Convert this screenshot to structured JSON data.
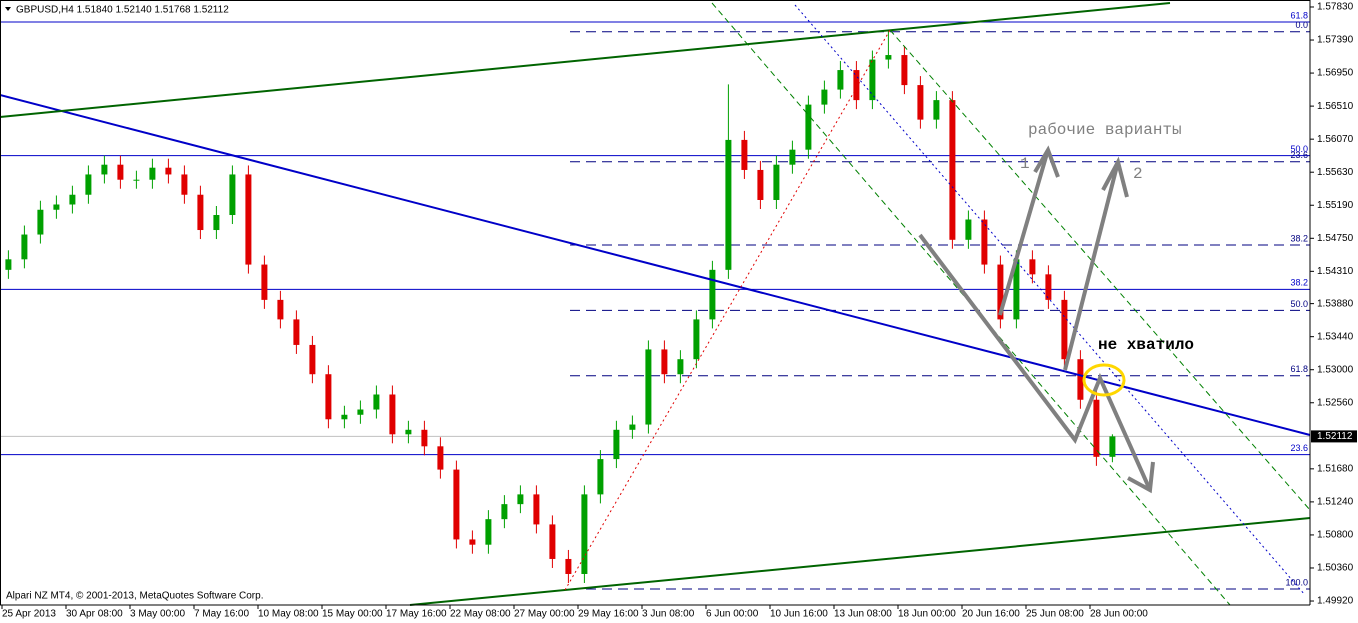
{
  "chart_data": {
    "type": "candlestick",
    "title": "GBPUSD,H4  1.51840 1.52140 1.51768 1.52112",
    "footer": "Alpari NZ MT4, © 2001-2013, MetaQuotes Software Corp.",
    "x_labels": [
      "25 Apr 2013",
      "30 Apr 08:00",
      "3 May 00:00",
      "7 May 16:00",
      "10 May 08:00",
      "15 May 00:00",
      "17 May 16:00",
      "22 May 08:00",
      "27 May 00:00",
      "29 May 16:00",
      "3 Jun 08:00",
      "6 Jun 00:00",
      "10 Jun 16:00",
      "13 Jun 08:00",
      "18 Jun 00:00",
      "20 Jun 16:00",
      "25 Jun 08:00",
      "28 Jun 00:00"
    ],
    "open": [
      1.5433,
      1.5447,
      1.548,
      1.5513,
      1.552,
      1.5533,
      1.556,
      1.5573,
      1.5553,
      1.5553,
      1.5569,
      1.556,
      1.5533,
      1.5486,
      1.5506,
      1.556,
      1.544,
      1.5393,
      1.5367,
      1.5333,
      1.5294,
      1.5234,
      1.524,
      1.5247,
      1.5267,
      1.5214,
      1.522,
      1.5198,
      1.5167,
      1.5074,
      1.5067,
      1.5101,
      1.5121,
      1.5134,
      1.5094,
      1.5048,
      1.5028,
      1.5134,
      1.5181,
      1.522,
      1.5227,
      1.5327,
      1.5294,
      1.5314,
      1.5367,
      1.5433,
      1.5606,
      1.5566,
      1.5526,
      1.5573,
      1.5593,
      1.5653,
      1.5673,
      1.5699,
      1.5659,
      1.5713,
      1.5719,
      1.5679,
      1.5633,
      1.5659,
      1.5473,
      1.55,
      1.544,
      1.5367,
      1.5447,
      1.5427,
      1.5393,
      1.5314,
      1.526,
      1.5184
    ],
    "high": [
      1.5459,
      1.5492,
      1.5525,
      1.5532,
      1.5545,
      1.5572,
      1.5585,
      1.5585,
      1.5565,
      1.5581,
      1.5581,
      1.5572,
      1.5545,
      1.5518,
      1.5572,
      1.5572,
      1.5452,
      1.5405,
      1.5379,
      1.5345,
      1.5306,
      1.5252,
      1.5259,
      1.5279,
      1.5279,
      1.5232,
      1.5232,
      1.521,
      1.5179,
      1.5086,
      1.5113,
      1.5133,
      1.5146,
      1.5146,
      1.5106,
      1.506,
      1.5146,
      1.5193,
      1.5232,
      1.5239,
      1.5339,
      1.5339,
      1.5326,
      1.5379,
      1.5445,
      1.568,
      1.5618,
      1.5578,
      1.5585,
      1.5605,
      1.5665,
      1.5685,
      1.5711,
      1.5711,
      1.5725,
      1.5752,
      1.5731,
      1.5691,
      1.5671,
      1.5671,
      1.5512,
      1.5512,
      1.5452,
      1.5459,
      1.5459,
      1.5439,
      1.5405,
      1.5326,
      1.5272,
      1.5214
    ],
    "low": [
      1.5421,
      1.5435,
      1.5468,
      1.5501,
      1.5508,
      1.5521,
      1.5548,
      1.5541,
      1.5541,
      1.5541,
      1.5548,
      1.5521,
      1.5474,
      1.5474,
      1.5494,
      1.5428,
      1.5381,
      1.5355,
      1.5321,
      1.5282,
      1.5222,
      1.5222,
      1.5228,
      1.5235,
      1.5202,
      1.5202,
      1.5186,
      1.5155,
      1.5062,
      1.5055,
      1.5055,
      1.5089,
      1.5109,
      1.5082,
      1.5036,
      1.5016,
      1.5016,
      1.5122,
      1.5169,
      1.5208,
      1.5215,
      1.5282,
      1.5282,
      1.5302,
      1.5355,
      1.5421,
      1.5554,
      1.5514,
      1.5514,
      1.5561,
      1.5581,
      1.5641,
      1.5661,
      1.5647,
      1.5647,
      1.5701,
      1.5667,
      1.5621,
      1.5621,
      1.5461,
      1.5461,
      1.5428,
      1.5355,
      1.5355,
      1.5415,
      1.5381,
      1.5302,
      1.5248,
      1.5172,
      1.51768
    ],
    "close": [
      1.5447,
      1.548,
      1.5513,
      1.552,
      1.5533,
      1.556,
      1.5573,
      1.5553,
      1.5553,
      1.5569,
      1.556,
      1.5533,
      1.5486,
      1.5506,
      1.556,
      1.544,
      1.5393,
      1.5367,
      1.5333,
      1.5294,
      1.5234,
      1.524,
      1.5247,
      1.5267,
      1.5214,
      1.522,
      1.5198,
      1.5167,
      1.5074,
      1.5067,
      1.5101,
      1.5121,
      1.5134,
      1.5094,
      1.5048,
      1.5028,
      1.5134,
      1.5181,
      1.522,
      1.5227,
      1.5327,
      1.5294,
      1.5314,
      1.5367,
      1.5433,
      1.5606,
      1.5566,
      1.5526,
      1.5573,
      1.5593,
      1.5653,
      1.5673,
      1.5699,
      1.5659,
      1.5713,
      1.5719,
      1.5679,
      1.5633,
      1.5659,
      1.5473,
      1.55,
      1.544,
      1.5367,
      1.5447,
      1.5427,
      1.5393,
      1.5314,
      1.526,
      1.5184,
      1.52112
    ],
    "up_color": "#00a000",
    "down_color": "#e00000",
    "ylim": [
      1.49867,
      1.57923
    ],
    "yticks": [
      {
        "value": 1.5783,
        "label": "1.57830"
      },
      {
        "value": 1.5739,
        "label": "1.57390"
      },
      {
        "value": 1.5695,
        "label": "1.56950"
      },
      {
        "value": 1.5651,
        "label": "1.56510"
      },
      {
        "value": 1.5607,
        "label": "1.56070"
      },
      {
        "value": 1.5563,
        "label": "1.55630"
      },
      {
        "value": 1.5519,
        "label": "1.55190"
      },
      {
        "value": 1.5475,
        "label": "1.54750"
      },
      {
        "value": 1.5431,
        "label": "1.54310"
      },
      {
        "value": 1.5388,
        "label": "1.53880"
      },
      {
        "value": 1.5344,
        "label": "1.53440"
      },
      {
        "value": 1.53,
        "label": "1.53000"
      },
      {
        "value": 1.5256,
        "label": "1.52560"
      },
      {
        "value": 1.5168,
        "label": "1.51680"
      },
      {
        "value": 1.5124,
        "label": "1.51240"
      },
      {
        "value": 1.508,
        "label": "1.50800"
      },
      {
        "value": 1.5036,
        "label": "1.50360"
      },
      {
        "value": 1.4992,
        "label": "1.49920"
      }
    ],
    "fib_levels": [
      {
        "label": "61.8",
        "price": 1.5763,
        "style": "solid"
      },
      {
        "label": "50.0",
        "price": 1.5585,
        "style": "solid"
      },
      {
        "label": "38.2",
        "price": 1.5407,
        "style": "solid"
      },
      {
        "label": "23.6",
        "price": 1.5187,
        "style": "solid"
      },
      {
        "label": "0.0",
        "price": 1.575,
        "style": "dashed"
      },
      {
        "label": "23.6",
        "price": 1.5577,
        "style": "dashed"
      },
      {
        "label": "38.2",
        "price": 1.5466,
        "style": "dashed"
      },
      {
        "label": "50.0",
        "price": 1.5379,
        "style": "dashed"
      },
      {
        "label": "61.8",
        "price": 1.5292,
        "style": "dashed"
      },
      {
        "label": "100.0",
        "price": 1.5008,
        "style": "dashed"
      }
    ],
    "solid_color": "#0000c8",
    "dashed_color": "#000080",
    "annotations": [
      "рабочие варианты",
      "1",
      "2",
      "не хватило"
    ]
  }
}
